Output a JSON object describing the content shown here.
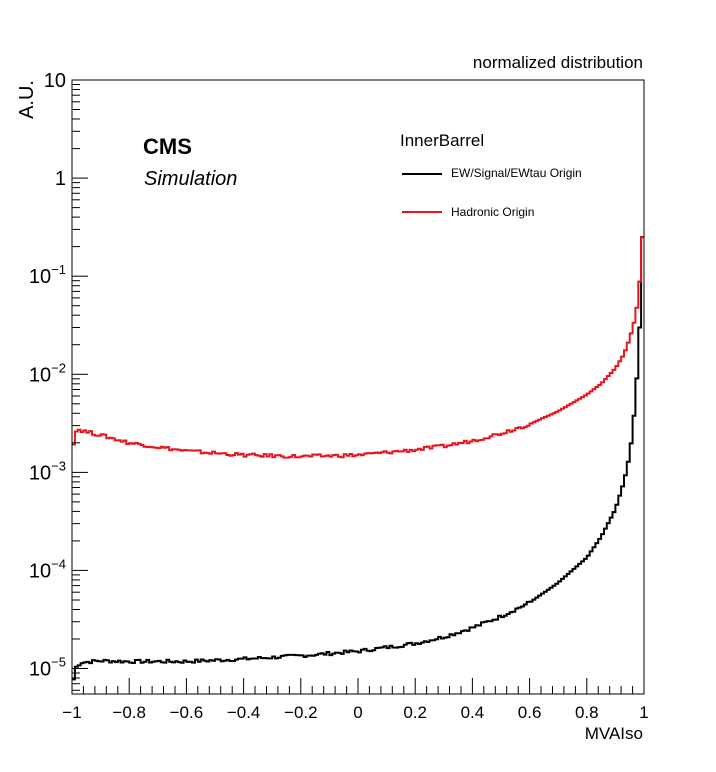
{
  "chart_data": {
    "type": "line",
    "title": "normalized distribution",
    "xlabel": "MVAIso",
    "ylabel": "A.U.",
    "xlim": [
      -1,
      1
    ],
    "ylim": [
      5.5e-06,
      10
    ],
    "yscale": "log",
    "grid": false,
    "x_ticks": [
      "−1",
      "−0.8",
      "−0.6",
      "−0.4",
      "−0.2",
      "0",
      "0.2",
      "0.4",
      "0.6",
      "0.8",
      "1"
    ],
    "y_ticks": [
      {
        "value": 1e-05,
        "base": "10",
        "exp": "−5"
      },
      {
        "value": 0.0001,
        "base": "10",
        "exp": "−4"
      },
      {
        "value": 0.001,
        "base": "10",
        "exp": "−3"
      },
      {
        "value": 0.01,
        "base": "10",
        "exp": "−2"
      },
      {
        "value": 0.1,
        "base": "10",
        "exp": "−1"
      },
      {
        "value": 1,
        "base": "1",
        "exp": ""
      },
      {
        "value": 10,
        "base": "10",
        "exp": ""
      }
    ],
    "annotations": {
      "experiment": "CMS",
      "status": "Simulation"
    },
    "legend": {
      "position": "top-right",
      "header": "InnerBarrel",
      "entries": [
        {
          "label": "EW/Signal/EWtau Origin",
          "color": "#000000"
        },
        {
          "label": "Hadronic Origin",
          "color": "#e8141c"
        }
      ]
    },
    "series": [
      {
        "name": "EW/Signal/EWtau Origin",
        "color": "#000000",
        "x": [
          -1.0,
          -0.99,
          -0.97,
          -0.9,
          -0.8,
          -0.6,
          -0.4,
          -0.2,
          0.0,
          0.2,
          0.3,
          0.4,
          0.5,
          0.6,
          0.7,
          0.8,
          0.85,
          0.9,
          0.93,
          0.95,
          0.96,
          0.97,
          0.98,
          0.99,
          0.995,
          1.0
        ],
        "values": [
          6e-06,
          1e-05,
          1.15e-05,
          1.2e-05,
          1.18e-05,
          1.18e-05,
          1.25e-05,
          1.35e-05,
          1.5e-05,
          1.8e-05,
          2.1e-05,
          2.6e-05,
          3.4e-05,
          4.7e-05,
          7.5e-05,
          0.000135,
          0.00022,
          0.00042,
          0.0008,
          0.0015,
          0.0026,
          0.0055,
          0.015,
          0.06,
          0.25,
          1.0
        ]
      },
      {
        "name": "Hadronic Origin",
        "color": "#e8141c",
        "x": [
          -1.0,
          -0.99,
          -0.98,
          -0.95,
          -0.9,
          -0.8,
          -0.6,
          -0.4,
          -0.2,
          0.0,
          0.2,
          0.3,
          0.4,
          0.5,
          0.6,
          0.7,
          0.8,
          0.85,
          0.9,
          0.93,
          0.95,
          0.97,
          0.98,
          0.99,
          0.995,
          1.0
        ],
        "values": [
          0.0016,
          0.0025,
          0.00275,
          0.0026,
          0.0024,
          0.002,
          0.00165,
          0.0015,
          0.00145,
          0.0015,
          0.0017,
          0.00185,
          0.0021,
          0.0025,
          0.0031,
          0.0042,
          0.0062,
          0.008,
          0.0115,
          0.016,
          0.023,
          0.038,
          0.06,
          0.13,
          0.25,
          0.37
        ]
      }
    ]
  }
}
